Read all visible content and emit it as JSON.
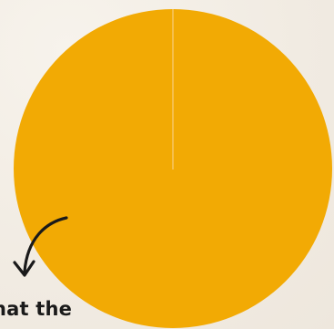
{
  "caption": {
    "text": "hat the"
  },
  "colors": {
    "circle_fill": "#f2aa04",
    "divider_line": "#f7c86a",
    "arrow": "#1a1a1a",
    "background": "#f1ebe2"
  },
  "icons": {
    "arrow": "curved-arrow-down-left-icon"
  }
}
